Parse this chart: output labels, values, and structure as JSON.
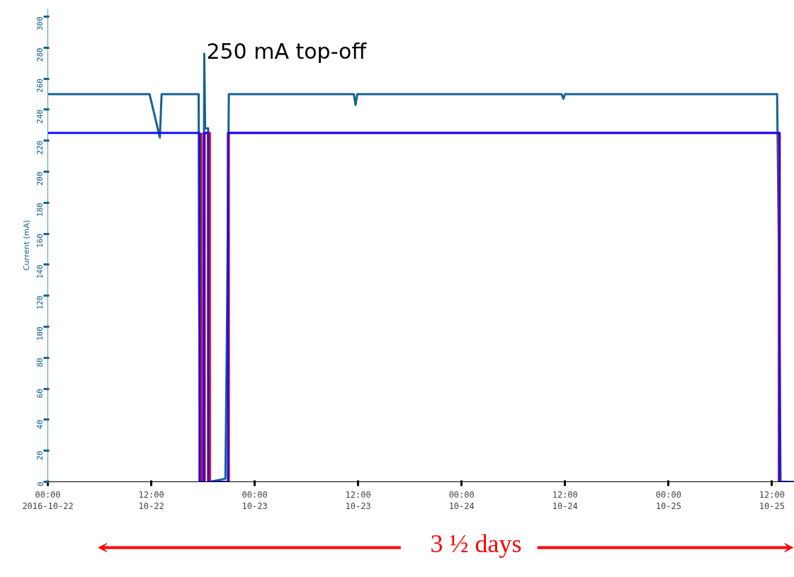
{
  "chart_data": {
    "type": "line",
    "ylabel": "Current (mA)",
    "annotations": [
      {
        "text": "250 mA top-off",
        "x": "2016-10-22T18:09",
        "y": 276
      },
      "3 ½ days"
    ],
    "xlim": [
      "2016-10-22T00:00",
      "2016-10-25T14:36"
    ],
    "xticks": [
      {
        "value": "2016-10-22T00:00",
        "label": "00:00\n2016-10-22"
      },
      {
        "value": "2016-10-22T12:00",
        "label": "12:00\n10-22"
      },
      {
        "value": "2016-10-23T00:00",
        "label": "00:00\n10-23"
      },
      {
        "value": "2016-10-23T12:00",
        "label": "12:00\n10-23"
      },
      {
        "value": "2016-10-24T00:00",
        "label": "00:00\n10-24"
      },
      {
        "value": "2016-10-24T12:00",
        "label": "12:00\n10-24"
      },
      {
        "value": "2016-10-25T00:00",
        "label": "00:00\n10-25"
      },
      {
        "value": "2016-10-25T12:00",
        "label": "12:00\n10-25"
      }
    ],
    "ylim": [
      0,
      305
    ],
    "yticks": [
      0,
      20,
      40,
      60,
      80,
      100,
      120,
      140,
      160,
      180,
      200,
      220,
      240,
      260,
      280,
      300
    ],
    "grid": false,
    "line_style": "solid",
    "marker": "none",
    "series": [
      {
        "color": "#15628e",
        "x": [
          "2016-10-22T00:00",
          "2016-10-22T11:48",
          "2016-10-22T13:00",
          "2016-10-22T13:12",
          "2016-10-22T17:30",
          "2016-10-22T17:33",
          "2016-10-22T17:42",
          "2016-10-22T18:00",
          "2016-10-22T18:09",
          "2016-10-22T18:15",
          "2016-10-22T18:36",
          "2016-10-22T18:39",
          "2016-10-22T18:45",
          "2016-10-22T18:48",
          "2016-10-22T20:36",
          "2016-10-22T20:48",
          "2016-10-22T21:00",
          "2016-10-23T11:30",
          "2016-10-23T11:42",
          "2016-10-23T11:54",
          "2016-10-24T11:36",
          "2016-10-24T11:48",
          "2016-10-24T12:00",
          "2016-10-25T12:36",
          "2016-10-25T12:48",
          "2016-10-25T13:00",
          "2016-10-25T14:36"
        ],
        "values": [
          250,
          250,
          222,
          250,
          250,
          125,
          0,
          0,
          276,
          228,
          228,
          0,
          90,
          0,
          2,
          110,
          250,
          250,
          243,
          250,
          250,
          247,
          250,
          250,
          150,
          0,
          0
        ]
      },
      {
        "color": "#ff0000",
        "x": [
          "2016-10-22T17:48",
          "2016-10-22T17:48",
          "2016-10-22T18:12",
          "2016-10-22T18:12",
          "2016-10-22T18:48",
          "2016-10-22T18:48",
          "2016-10-22T21:00",
          "2016-10-22T21:00",
          "2016-10-25T12:48",
          "2016-10-25T12:48"
        ],
        "values": [
          225,
          0,
          0,
          225,
          225,
          0,
          0,
          225,
          225,
          0
        ]
      },
      {
        "color": "#1010ff",
        "x": [
          "2016-10-22T00:00",
          "2016-10-22T17:36",
          "2016-10-22T17:36",
          "2016-10-22T18:06",
          "2016-10-22T18:06",
          "2016-10-22T18:36",
          "2016-10-22T18:36",
          "2016-10-22T20:54",
          "2016-10-22T20:54",
          "2016-10-25T12:54",
          "2016-10-25T12:54",
          "2016-10-25T14:00"
        ],
        "values": [
          225,
          225,
          0,
          0,
          225,
          225,
          0,
          0,
          225,
          225,
          0,
          0
        ]
      }
    ]
  }
}
